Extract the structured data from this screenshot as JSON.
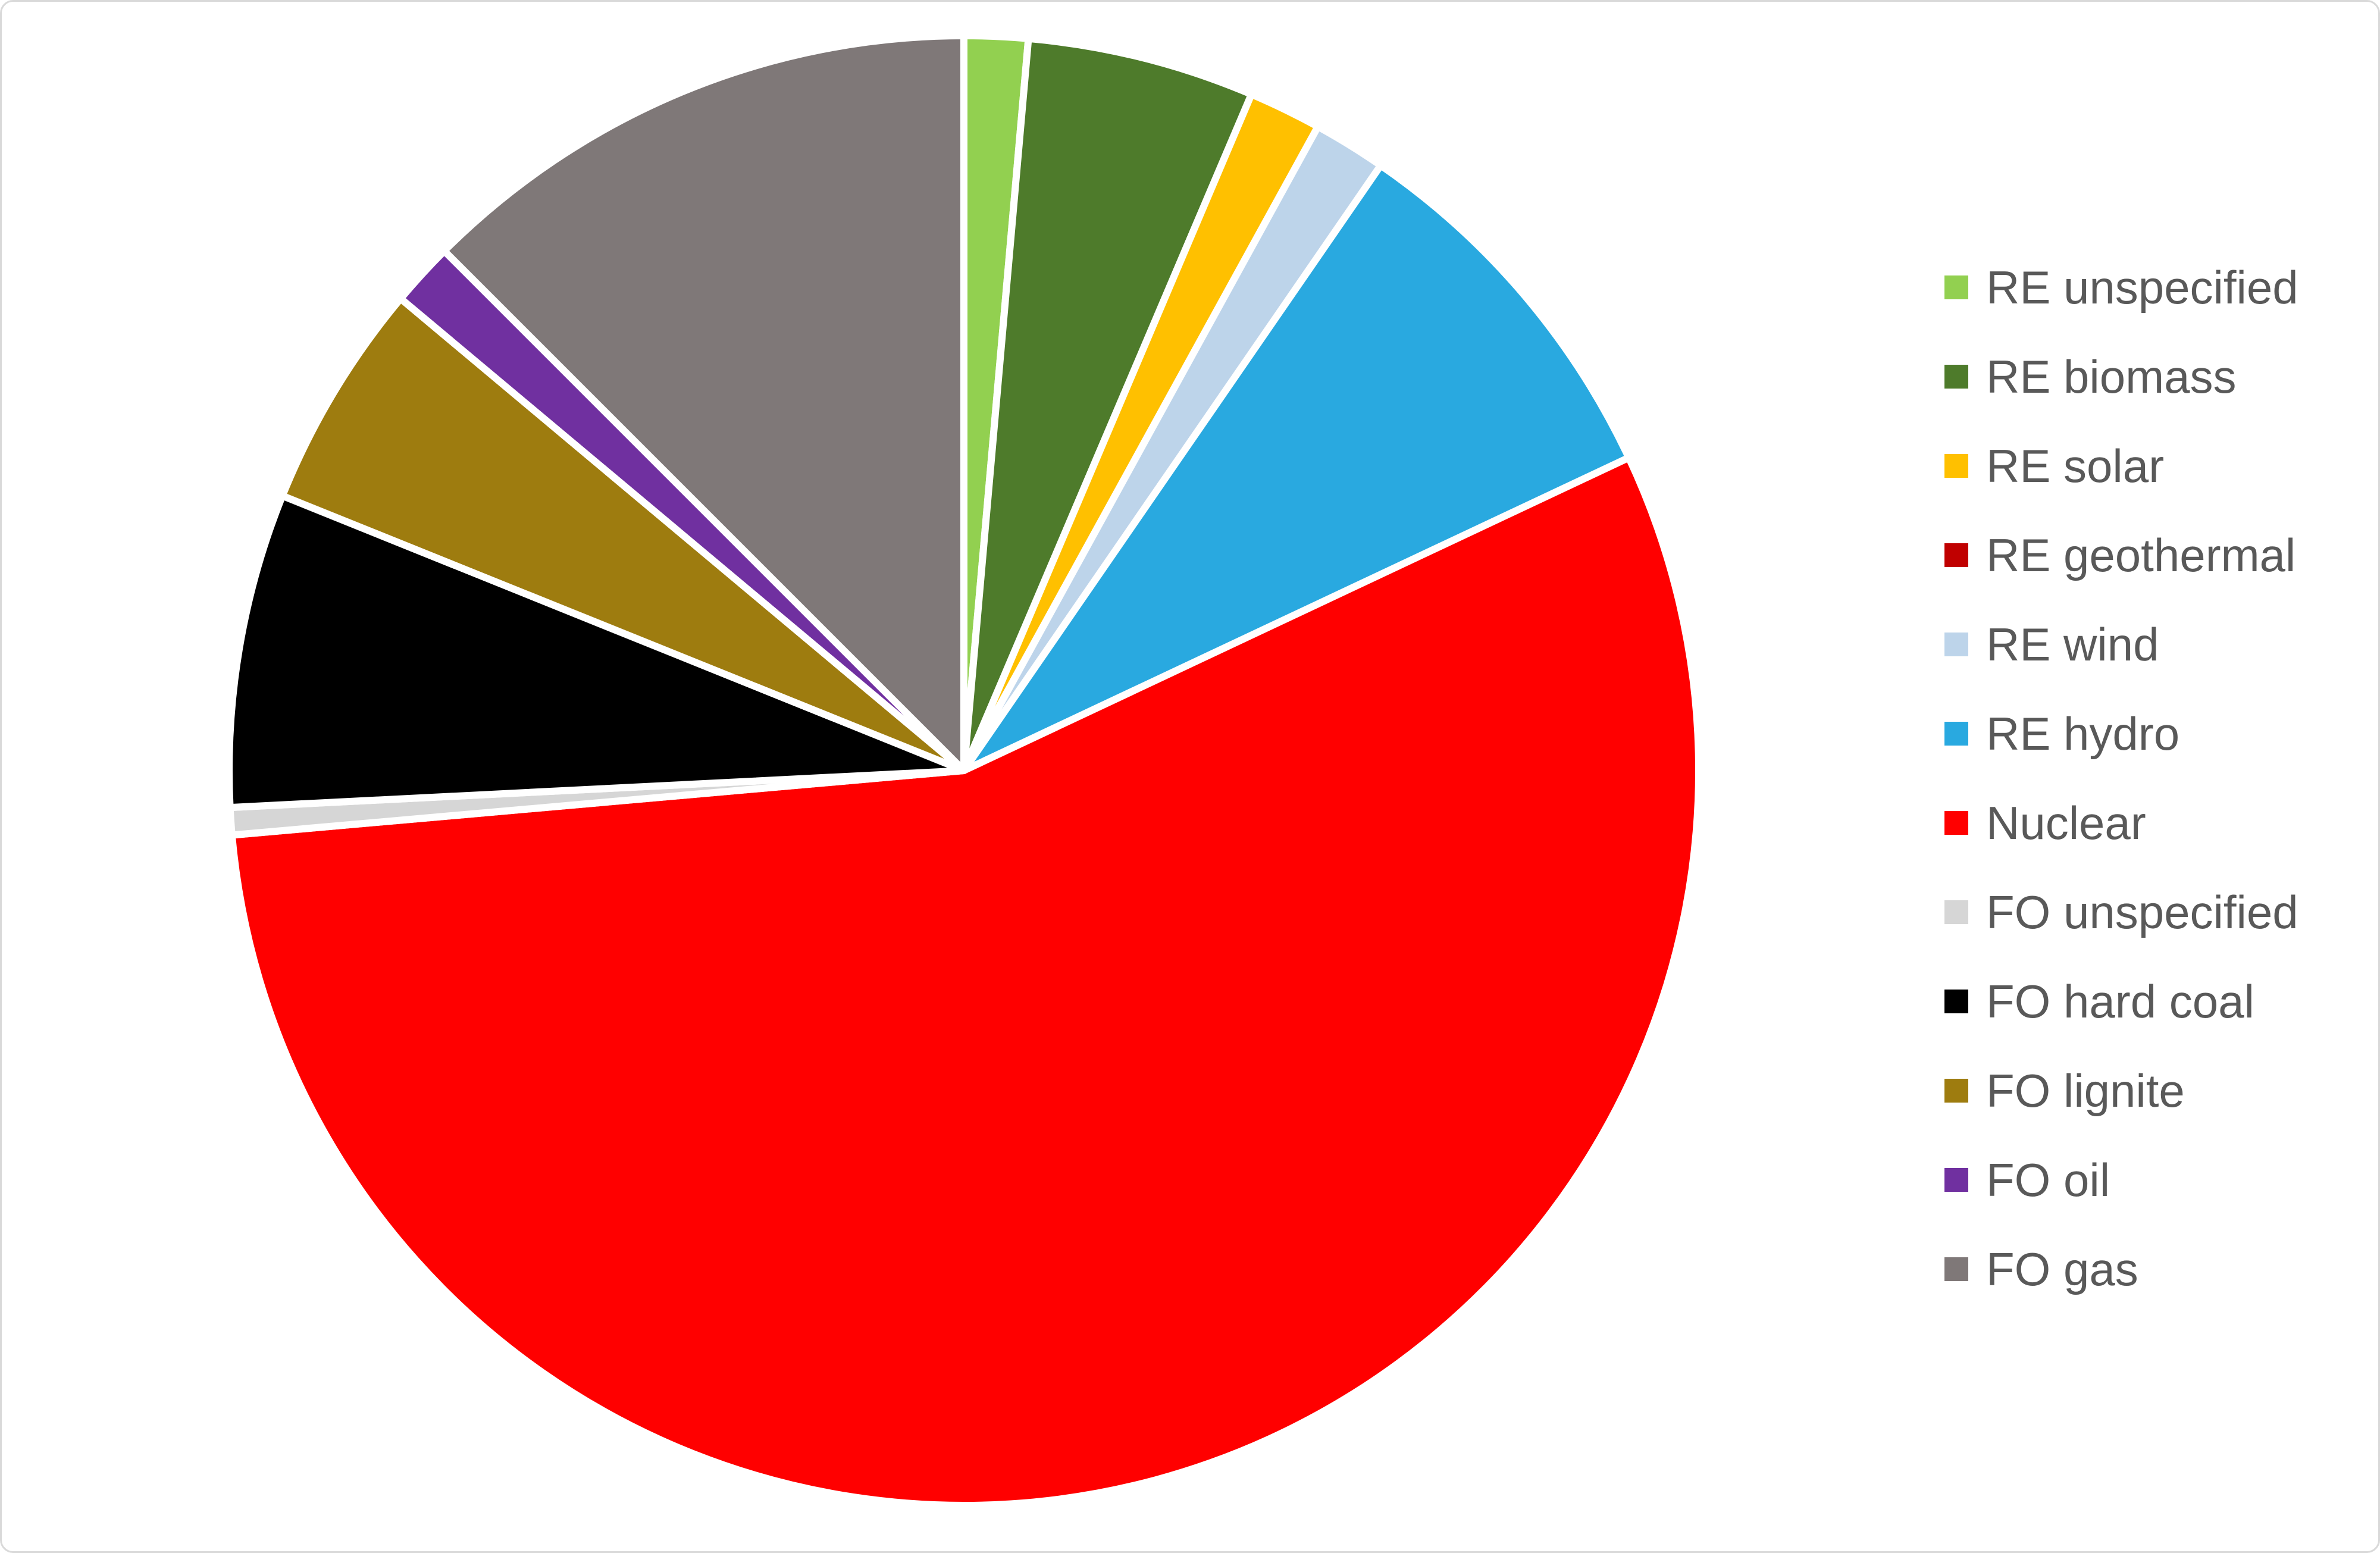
{
  "figure": {
    "background_color": "#ffffff",
    "frame_border_color": "#d9d9d9"
  },
  "chart_data": {
    "type": "pie",
    "title": "",
    "start_angle_deg": 0,
    "direction": "clockwise",
    "slice_border_color": "#ffffff",
    "legend_position": "right",
    "legend_text_color": "#595959",
    "categories": [
      "RE unspecified",
      "RE biomass",
      "RE solar",
      "RE geothermal",
      "RE wind",
      "RE hydro",
      "Nuclear",
      "FO unspecified",
      "FO hard coal",
      "FO lignite",
      "FO oil",
      "FO gas"
    ],
    "slugs": [
      "re-unspecified",
      "re-biomass",
      "re-solar",
      "re-geothermal",
      "re-wind",
      "re-hydro",
      "nuclear",
      "fo-unspecified",
      "fo-hard-coal",
      "fo-lignite",
      "fo-oil",
      "fo-gas"
    ],
    "values": [
      1.4,
      5.0,
      1.6,
      0.0,
      1.6,
      8.4,
      55.6,
      0.6,
      6.9,
      5.0,
      1.4,
      12.5
    ],
    "unit": "percent",
    "total": 100.0,
    "colors": [
      "#92D050",
      "#4E7B2B",
      "#FFC000",
      "#C00000",
      "#BDD4EA",
      "#29A9E0",
      "#FF0000",
      "#D6D6D6",
      "#000000",
      "#9E7C0F",
      "#7030A0",
      "#7F7878"
    ]
  }
}
